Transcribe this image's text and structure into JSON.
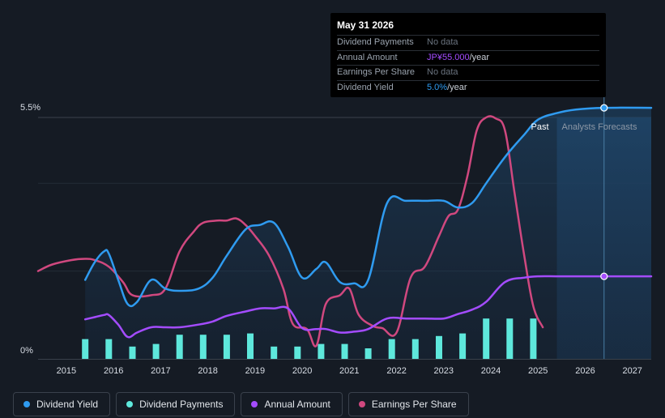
{
  "tooltip": {
    "date": "May 31 2026",
    "rows": [
      {
        "label": "Dividend Payments",
        "value": "No data"
      },
      {
        "label": "Annual Amount",
        "value": "JP¥55.000",
        "unit": "/year"
      },
      {
        "label": "Earnings Per Share",
        "value": "No data"
      },
      {
        "label": "Dividend Yield",
        "value": "5.0%",
        "unit": "/year"
      }
    ]
  },
  "regions": {
    "past": "Past",
    "forecast": "Analysts Forecasts"
  },
  "legend": [
    {
      "label": "Dividend Yield",
      "color": "#2f9bf0"
    },
    {
      "label": "Dividend Payments",
      "color": "#5ee8dc"
    },
    {
      "label": "Annual Amount",
      "color": "#a44cff"
    },
    {
      "label": "Earnings Per Share",
      "color": "#d0487f"
    }
  ],
  "chart_data": {
    "type": "line",
    "title": "",
    "xlabel": "",
    "ylabel": "",
    "y_tick_labels": [
      "5.5%",
      "0%"
    ],
    "ylim": [
      0,
      5.5
    ],
    "xlim": [
      2014.4,
      2027.4
    ],
    "x_ticks": [
      "2015",
      "2016",
      "2017",
      "2018",
      "2019",
      "2020",
      "2021",
      "2022",
      "2023",
      "2024",
      "2025",
      "2026",
      "2027"
    ],
    "forecast_start": 2025.4,
    "tooltip_x": 2026.4,
    "series": [
      {
        "name": "Dividend Yield",
        "color": "#2f9bf0",
        "unit": "%",
        "points": [
          [
            2015.4,
            1.8
          ],
          [
            2015.6,
            2.2
          ],
          [
            2015.8,
            2.45
          ],
          [
            2015.9,
            2.4
          ],
          [
            2016.1,
            1.8
          ],
          [
            2016.3,
            1.25
          ],
          [
            2016.5,
            1.3
          ],
          [
            2016.8,
            1.8
          ],
          [
            2017.1,
            1.6
          ],
          [
            2017.4,
            1.55
          ],
          [
            2017.8,
            1.6
          ],
          [
            2018.1,
            1.85
          ],
          [
            2018.4,
            2.35
          ],
          [
            2018.8,
            2.95
          ],
          [
            2019.1,
            3.05
          ],
          [
            2019.4,
            3.1
          ],
          [
            2019.7,
            2.55
          ],
          [
            2020.0,
            1.85
          ],
          [
            2020.3,
            2.05
          ],
          [
            2020.5,
            2.2
          ],
          [
            2020.8,
            1.75
          ],
          [
            2021.1,
            1.72
          ],
          [
            2021.4,
            1.8
          ],
          [
            2021.8,
            3.55
          ],
          [
            2022.2,
            3.6
          ],
          [
            2022.6,
            3.6
          ],
          [
            2023.0,
            3.6
          ],
          [
            2023.3,
            3.45
          ],
          [
            2023.6,
            3.55
          ],
          [
            2023.9,
            4.0
          ],
          [
            2024.3,
            4.6
          ],
          [
            2024.7,
            5.1
          ],
          [
            2025.0,
            5.45
          ],
          [
            2025.4,
            5.6
          ],
          [
            2025.8,
            5.68
          ],
          [
            2026.4,
            5.72
          ],
          [
            2027.4,
            5.72
          ]
        ]
      },
      {
        "name": "Annual Amount",
        "color": "#a44cff",
        "unit": "JPY",
        "points": [
          [
            2015.4,
            0.9
          ],
          [
            2015.6,
            0.95
          ],
          [
            2015.8,
            1.0
          ],
          [
            2015.9,
            1.0
          ],
          [
            2016.1,
            0.78
          ],
          [
            2016.3,
            0.5
          ],
          [
            2016.5,
            0.6
          ],
          [
            2016.8,
            0.72
          ],
          [
            2017.1,
            0.72
          ],
          [
            2017.4,
            0.72
          ],
          [
            2017.8,
            0.78
          ],
          [
            2018.1,
            0.85
          ],
          [
            2018.4,
            0.98
          ],
          [
            2018.8,
            1.08
          ],
          [
            2019.1,
            1.15
          ],
          [
            2019.4,
            1.15
          ],
          [
            2019.7,
            1.15
          ],
          [
            2020.0,
            0.7
          ],
          [
            2020.3,
            0.68
          ],
          [
            2020.5,
            0.68
          ],
          [
            2020.8,
            0.6
          ],
          [
            2021.1,
            0.62
          ],
          [
            2021.4,
            0.68
          ],
          [
            2021.8,
            0.92
          ],
          [
            2022.2,
            0.92
          ],
          [
            2022.6,
            0.92
          ],
          [
            2023.0,
            0.92
          ],
          [
            2023.3,
            1.02
          ],
          [
            2023.6,
            1.12
          ],
          [
            2023.9,
            1.3
          ],
          [
            2024.3,
            1.75
          ],
          [
            2024.7,
            1.85
          ],
          [
            2025.0,
            1.88
          ],
          [
            2025.4,
            1.88
          ],
          [
            2025.8,
            1.88
          ],
          [
            2026.4,
            1.88
          ],
          [
            2027.4,
            1.88
          ]
        ]
      },
      {
        "name": "Earnings Per Share",
        "color": "#d0487f",
        "unit": "JPY",
        "points": [
          [
            2014.4,
            2.0
          ],
          [
            2014.7,
            2.15
          ],
          [
            2015.1,
            2.25
          ],
          [
            2015.4,
            2.28
          ],
          [
            2015.6,
            2.25
          ],
          [
            2015.9,
            2.1
          ],
          [
            2016.2,
            1.75
          ],
          [
            2016.4,
            1.45
          ],
          [
            2016.8,
            1.45
          ],
          [
            2017.1,
            1.6
          ],
          [
            2017.4,
            2.45
          ],
          [
            2017.7,
            2.9
          ],
          [
            2017.9,
            3.1
          ],
          [
            2018.2,
            3.15
          ],
          [
            2018.4,
            3.15
          ],
          [
            2018.6,
            3.2
          ],
          [
            2018.8,
            3.05
          ],
          [
            2019.0,
            2.8
          ],
          [
            2019.3,
            2.35
          ],
          [
            2019.6,
            1.6
          ],
          [
            2019.8,
            0.8
          ],
          [
            2020.1,
            0.68
          ],
          [
            2020.3,
            0.3
          ],
          [
            2020.5,
            1.25
          ],
          [
            2020.8,
            1.45
          ],
          [
            2021.0,
            1.6
          ],
          [
            2021.2,
            1.0
          ],
          [
            2021.5,
            0.75
          ],
          [
            2021.7,
            0.7
          ],
          [
            2022.0,
            0.6
          ],
          [
            2022.3,
            1.85
          ],
          [
            2022.6,
            2.1
          ],
          [
            2022.9,
            2.8
          ],
          [
            2023.1,
            3.25
          ],
          [
            2023.3,
            3.4
          ],
          [
            2023.5,
            4.15
          ],
          [
            2023.7,
            5.2
          ],
          [
            2023.9,
            5.5
          ],
          [
            2024.1,
            5.48
          ],
          [
            2024.3,
            5.2
          ],
          [
            2024.5,
            3.8
          ],
          [
            2024.7,
            2.4
          ],
          [
            2024.9,
            1.2
          ],
          [
            2025.1,
            0.72
          ]
        ]
      }
    ],
    "bars": {
      "name": "Dividend Payments",
      "color": "#5ee8dc",
      "points": [
        [
          2015.4,
          0.45
        ],
        [
          2015.9,
          0.45
        ],
        [
          2016.4,
          0.28
        ],
        [
          2016.9,
          0.34
        ],
        [
          2017.4,
          0.55
        ],
        [
          2017.9,
          0.55
        ],
        [
          2018.4,
          0.55
        ],
        [
          2018.9,
          0.58
        ],
        [
          2019.4,
          0.28
        ],
        [
          2019.9,
          0.28
        ],
        [
          2020.4,
          0.34
        ],
        [
          2020.9,
          0.34
        ],
        [
          2021.4,
          0.24
        ],
        [
          2021.9,
          0.45
        ],
        [
          2022.4,
          0.45
        ],
        [
          2022.9,
          0.52
        ],
        [
          2023.4,
          0.58
        ],
        [
          2023.9,
          0.92
        ],
        [
          2024.4,
          0.92
        ],
        [
          2024.9,
          0.92
        ]
      ]
    }
  }
}
